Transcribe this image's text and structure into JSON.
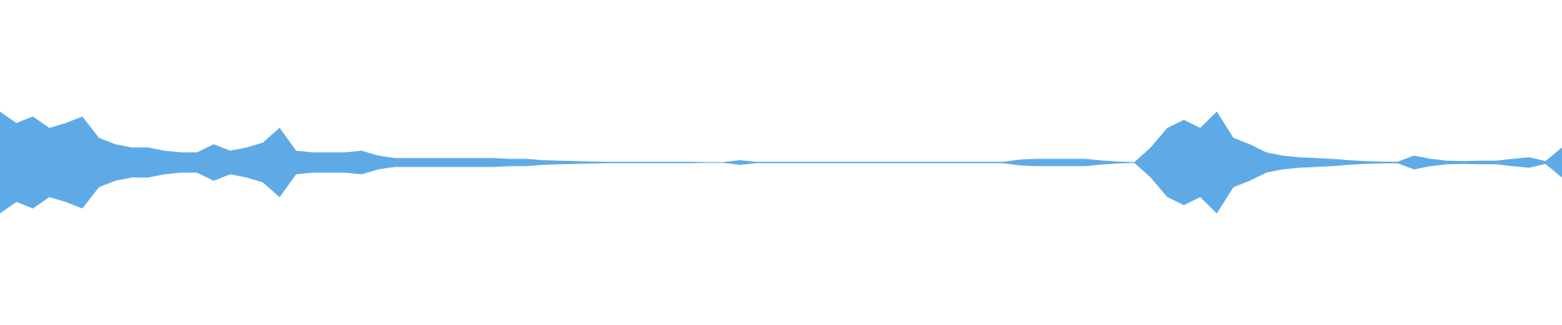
{
  "chart_data": {
    "type": "waveform",
    "color": "#5eaae6",
    "ylim": [
      -1,
      1
    ],
    "values": [
      0.31,
      0.24,
      0.28,
      0.21,
      0.24,
      0.28,
      0.15,
      0.11,
      0.09,
      0.09,
      0.07,
      0.06,
      0.06,
      0.11,
      0.07,
      0.09,
      0.12,
      0.21,
      0.07,
      0.06,
      0.06,
      0.06,
      0.07,
      0.04,
      0.025,
      0.025,
      0.025,
      0.025,
      0.025,
      0.025,
      0.025,
      0.02,
      0.02,
      0.012,
      0.009,
      0.006,
      0.004,
      0.002,
      0.002,
      0.002,
      0.002,
      0.002,
      0.002,
      0,
      0,
      0.012,
      0.002,
      0.002,
      0.002,
      0.002,
      0.002,
      0.002,
      0.002,
      0.002,
      0.002,
      0.002,
      0.002,
      0.002,
      0.002,
      0.002,
      0.002,
      0.002,
      0.015,
      0.02,
      0.02,
      0.02,
      0.02,
      0.01,
      0.003,
      0,
      0.09,
      0.21,
      0.26,
      0.21,
      0.31,
      0.15,
      0.11,
      0.06,
      0.04,
      0.03,
      0.025,
      0.02,
      0.012,
      0.006,
      0.003,
      0.002,
      0.04,
      0.02,
      0.009,
      0.006,
      0.009,
      0.009,
      0.02,
      0.03,
      0.006,
      0.09
    ]
  }
}
